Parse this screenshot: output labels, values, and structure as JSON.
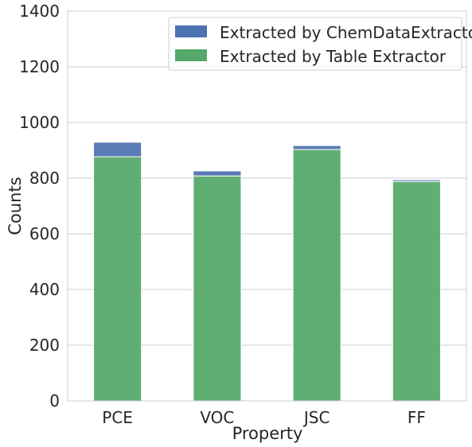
{
  "chart_data": {
    "type": "bar",
    "stacked": true,
    "categories": [
      "PCE",
      "VOC",
      "JSC",
      "FF"
    ],
    "series": [
      {
        "name": "Extracted by ChemDataExtractor",
        "values": [
          52,
          18,
          14,
          6
        ],
        "color": "#4c72b0"
      },
      {
        "name": "Extracted by Table Extractor",
        "values": [
          877,
          808,
          903,
          788
        ],
        "color": "#55a868"
      }
    ],
    "xlabel": "Property",
    "ylabel": "Counts",
    "ylim": [
      0,
      1400
    ],
    "yticks": [
      "0",
      "200",
      "400",
      "600",
      "800",
      "1000",
      "1200",
      "1400"
    ],
    "grid": true,
    "legend_position": "top-right"
  }
}
